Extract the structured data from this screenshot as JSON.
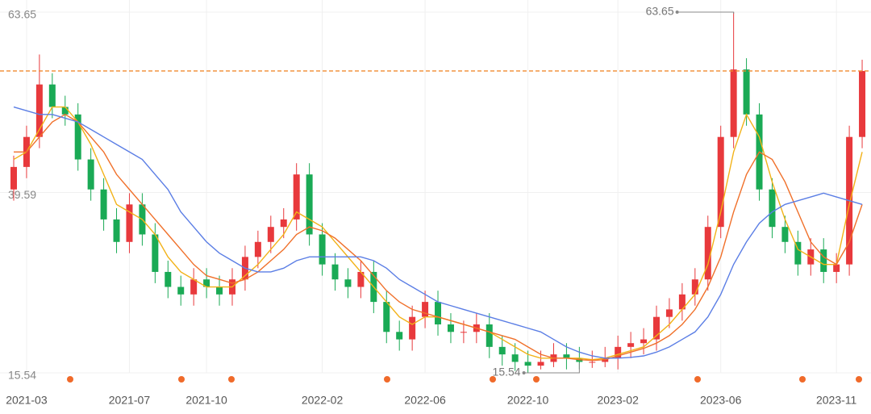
{
  "chart_data": {
    "type": "candlestick",
    "categories": [
      null,
      "2021-03",
      null,
      null,
      null,
      null,
      null,
      null,
      null,
      "2021-07",
      null,
      null,
      null,
      null,
      null,
      "2021-10",
      null,
      null,
      null,
      null,
      null,
      null,
      null,
      null,
      "2022-02",
      null,
      null,
      null,
      null,
      null,
      null,
      null,
      "2022-06",
      null,
      null,
      null,
      null,
      null,
      null,
      null,
      "2022-10",
      null,
      null,
      null,
      null,
      null,
      null,
      "2023-02",
      null,
      null,
      null,
      null,
      null,
      null,
      null,
      "2023-06",
      null,
      null,
      null,
      null,
      null,
      null,
      null,
      null,
      "2023-11",
      null,
      null
    ],
    "open": [
      40,
      43,
      47,
      54,
      51,
      50,
      44,
      40,
      36,
      33,
      38,
      34,
      29,
      27,
      26,
      28,
      27,
      26,
      28,
      31,
      33,
      35,
      36,
      42,
      34,
      30,
      28,
      27,
      29,
      25,
      21,
      20,
      23,
      25,
      22,
      21,
      21,
      22,
      19,
      18,
      17,
      16.5,
      17,
      18,
      17.5,
      17,
      17,
      17.5,
      19,
      19.5,
      20,
      23,
      24,
      26,
      28,
      35,
      47,
      56,
      50,
      40,
      35,
      33,
      30,
      32,
      29,
      30,
      47
    ],
    "high": [
      44.5,
      48.5,
      58,
      55.5,
      52.5,
      51.5,
      45.5,
      41.5,
      37.5,
      39.5,
      39.5,
      35.5,
      30.5,
      28.5,
      29.5,
      29.5,
      28.5,
      29.5,
      32.5,
      34.5,
      36.5,
      37.5,
      43.5,
      43.5,
      35.5,
      31.5,
      29.5,
      30.5,
      30.5,
      26.5,
      22.5,
      24.5,
      26.5,
      26.5,
      23.5,
      22.5,
      23.5,
      23.5,
      20.5,
      19.5,
      18.5,
      18.5,
      19.5,
      19.5,
      19,
      18.5,
      19,
      20.5,
      21,
      21.5,
      24.5,
      25.5,
      27.5,
      29.5,
      36.5,
      48.5,
      63.65,
      57.5,
      51.5,
      41.5,
      36.5,
      34.5,
      33.5,
      33.5,
      31.5,
      48.5,
      57.3
    ],
    "low": [
      38.5,
      41.5,
      45.5,
      49.5,
      48.5,
      42.5,
      38.5,
      34.5,
      31.5,
      31.5,
      32.5,
      27.5,
      25.5,
      24.5,
      24.5,
      25.5,
      24.5,
      24.5,
      26.5,
      29.5,
      31.5,
      33.5,
      34.5,
      32.5,
      28.5,
      26.5,
      25.5,
      25.5,
      23.5,
      19.5,
      18.5,
      18.5,
      21.5,
      20.5,
      19.5,
      19.5,
      19.5,
      17.5,
      16.5,
      15.8,
      15.54,
      16,
      16.3,
      16,
      16,
      16.2,
      16.3,
      16,
      17.5,
      18,
      18.5,
      21.5,
      22.5,
      24.5,
      26.5,
      33.5,
      45.5,
      48.5,
      38.5,
      33.5,
      31.5,
      28.5,
      28.5,
      27.5,
      27.5,
      28.5,
      45.5
    ],
    "close": [
      43,
      47,
      54,
      51,
      50,
      44,
      40,
      36,
      33,
      38,
      34,
      29,
      27,
      26,
      28,
      27,
      26,
      28,
      31,
      33,
      35,
      36,
      42,
      34,
      30,
      28,
      27,
      29,
      25,
      21,
      20,
      23,
      25,
      22,
      21,
      21,
      22,
      19,
      18,
      17,
      16.5,
      17,
      18,
      17.5,
      17,
      17,
      17.5,
      19,
      19.5,
      20,
      23,
      24,
      26,
      28,
      35,
      47,
      56,
      50,
      40,
      35,
      33,
      30,
      32,
      29,
      30,
      47,
      55.8
    ],
    "up_color": "#e8393c",
    "down_color": "#1aaa55",
    "lines": [
      {
        "color": "#f2b218",
        "values": [
          44,
          45,
          48,
          51,
          51,
          49,
          46,
          42,
          38,
          37,
          36,
          34,
          31,
          29,
          28,
          27,
          27,
          27,
          28.5,
          30,
          32,
          34,
          37,
          36,
          35,
          33,
          31,
          29,
          27,
          25,
          23,
          22,
          23,
          23,
          22.5,
          22,
          21.5,
          21,
          20,
          19,
          18,
          17.5,
          17.5,
          17.5,
          17.5,
          17.3,
          17.5,
          18,
          18.5,
          19,
          20.5,
          22,
          24,
          26,
          30,
          37,
          45,
          50,
          47,
          41,
          36,
          32,
          31,
          30,
          30,
          38,
          45
        ]
      },
      {
        "color": "#f0702a",
        "values": [
          45,
          45,
          47,
          49,
          50,
          49,
          47,
          45,
          42,
          40,
          38,
          36,
          34,
          32,
          30,
          28.5,
          28,
          27.5,
          28,
          29,
          30.5,
          32,
          34,
          35,
          34.5,
          33.5,
          32,
          30.5,
          28.5,
          26.5,
          25,
          24,
          23.5,
          23,
          22.5,
          22,
          21.5,
          21,
          20.5,
          20,
          19,
          18,
          17.5,
          17.5,
          17.3,
          17.2,
          17.3,
          17.8,
          18.3,
          18.8,
          19.5,
          20.5,
          22,
          24,
          27,
          31,
          37,
          42,
          45,
          44,
          41,
          37,
          33,
          31,
          30,
          33,
          38
        ]
      },
      {
        "color": "#5b7ee5",
        "values": [
          51,
          50.5,
          50,
          50,
          49.5,
          49,
          48,
          47,
          46,
          45,
          44,
          42,
          40,
          37,
          35,
          33,
          31.5,
          30.5,
          29.5,
          29,
          29,
          29.5,
          30.5,
          31,
          31,
          31,
          31,
          31,
          30.5,
          29.5,
          28,
          27,
          26,
          25,
          24.5,
          24,
          23.5,
          23,
          22.5,
          22,
          21.5,
          21,
          20,
          19,
          18.3,
          17.8,
          17.5,
          17.5,
          17.6,
          17.8,
          18.3,
          19,
          20,
          21,
          23,
          26,
          30,
          33,
          35.5,
          37,
          38,
          38.5,
          39,
          39.5,
          39,
          38.5,
          38
        ]
      }
    ],
    "price_line_color": "#f08a30",
    "ylim": [
      15.54,
      63.65
    ],
    "yticks": [
      15.54,
      39.59,
      63.65
    ],
    "grid": true
  }
}
